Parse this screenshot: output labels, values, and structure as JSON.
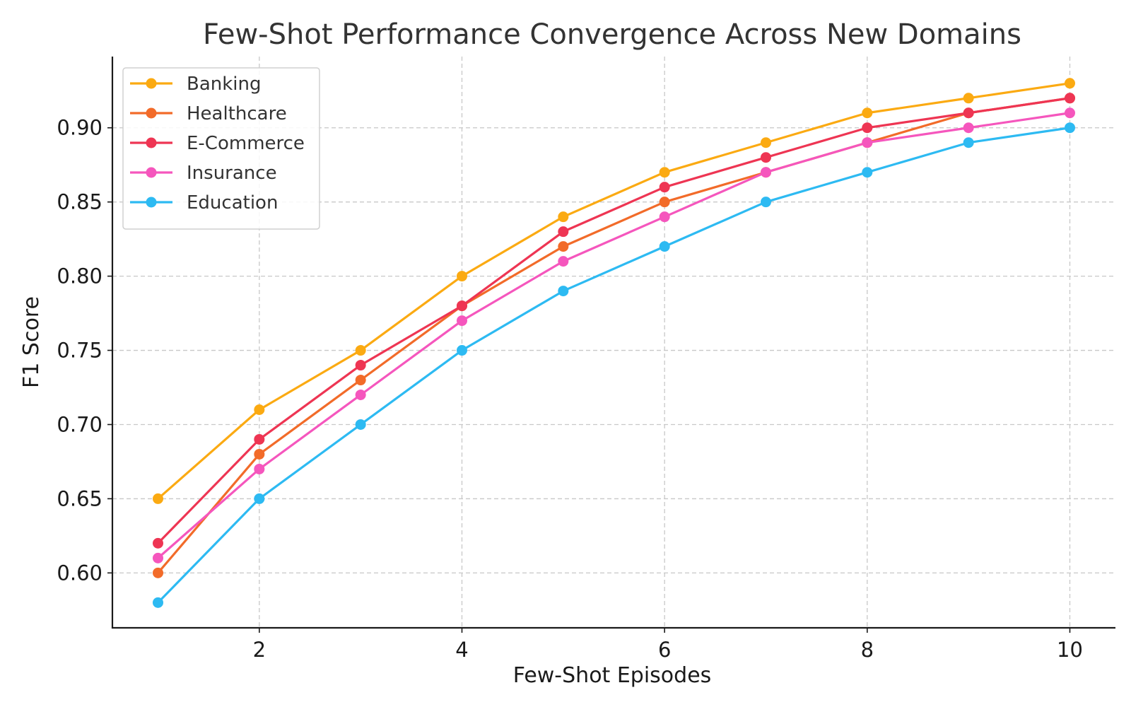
{
  "chart_data": {
    "type": "line",
    "title": "Few-Shot Performance Convergence Across New Domains",
    "xlabel": "Few-Shot Episodes",
    "ylabel": "F1 Score",
    "x": [
      1,
      2,
      3,
      4,
      5,
      6,
      7,
      8,
      9,
      10
    ],
    "xlim": [
      0.55,
      10.45
    ],
    "ylim": [
      0.563,
      0.948
    ],
    "xticks": [
      2,
      4,
      6,
      8,
      10
    ],
    "yticks": [
      0.6,
      0.65,
      0.7,
      0.75,
      0.8,
      0.85,
      0.9
    ],
    "xtick_labels": [
      "2",
      "4",
      "6",
      "8",
      "10"
    ],
    "ytick_labels": [
      "0.60",
      "0.65",
      "0.70",
      "0.75",
      "0.80",
      "0.85",
      "0.90"
    ],
    "grid": true,
    "legend_position": "top-left",
    "series": [
      {
        "name": "Banking",
        "color": "#FBAA12",
        "values": [
          0.65,
          0.71,
          0.75,
          0.8,
          0.84,
          0.87,
          0.89,
          0.91,
          0.92,
          0.93
        ]
      },
      {
        "name": "Healthcare",
        "color": "#F26B29",
        "values": [
          0.6,
          0.68,
          0.73,
          0.78,
          0.82,
          0.85,
          0.87,
          0.89,
          0.91,
          0.92
        ]
      },
      {
        "name": "E-Commerce",
        "color": "#EE3553",
        "values": [
          0.62,
          0.69,
          0.74,
          0.78,
          0.83,
          0.86,
          0.88,
          0.9,
          0.91,
          0.92
        ]
      },
      {
        "name": "Insurance",
        "color": "#F556BD",
        "values": [
          0.61,
          0.67,
          0.72,
          0.77,
          0.81,
          0.84,
          0.87,
          0.89,
          0.9,
          0.91
        ]
      },
      {
        "name": "Education",
        "color": "#2DBAF2",
        "values": [
          0.58,
          0.65,
          0.7,
          0.75,
          0.79,
          0.82,
          0.85,
          0.87,
          0.89,
          0.9
        ]
      }
    ]
  }
}
